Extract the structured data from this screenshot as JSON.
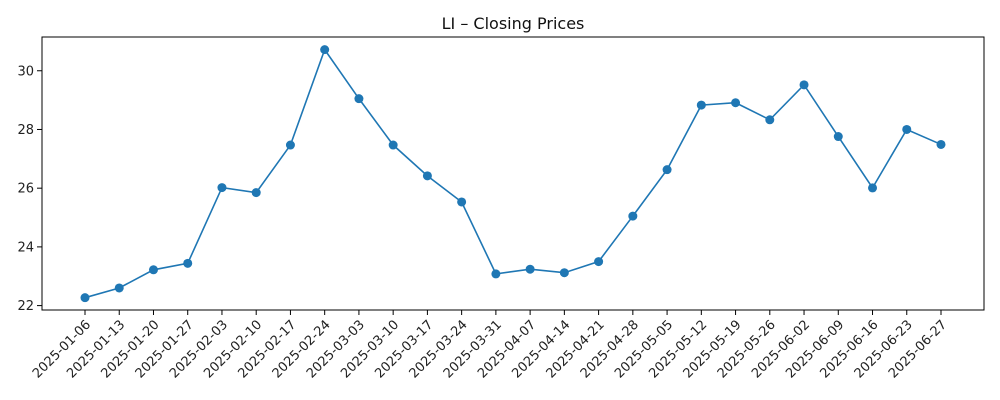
{
  "chart_data": {
    "type": "line",
    "title": "LI – Closing Prices",
    "xlabel": "",
    "ylabel": "",
    "x": [
      "2025-01-06",
      "2025-01-13",
      "2025-01-20",
      "2025-01-27",
      "2025-02-03",
      "2025-02-10",
      "2025-02-17",
      "2025-02-24",
      "2025-03-03",
      "2025-03-10",
      "2025-03-17",
      "2025-03-24",
      "2025-03-31",
      "2025-04-07",
      "2025-04-14",
      "2025-04-21",
      "2025-04-28",
      "2025-05-05",
      "2025-05-12",
      "2025-05-19",
      "2025-05-26",
      "2025-06-02",
      "2025-06-09",
      "2025-06-16",
      "2025-06-23",
      "2025-06-27"
    ],
    "series": [
      {
        "values": [
          22.27,
          22.6,
          23.22,
          23.44,
          26.02,
          25.85,
          27.47,
          30.72,
          29.05,
          27.47,
          26.42,
          25.53,
          23.08,
          23.24,
          23.12,
          23.5,
          25.05,
          26.63,
          28.83,
          28.91,
          28.33,
          29.52,
          27.76,
          26.01,
          28.0,
          27.49
        ],
        "color": "#1f77b4"
      }
    ],
    "yticks": [
      22,
      24,
      26,
      28,
      30
    ],
    "ylim": [
      21.85,
      31.15
    ],
    "grid": false,
    "legend": "none"
  }
}
